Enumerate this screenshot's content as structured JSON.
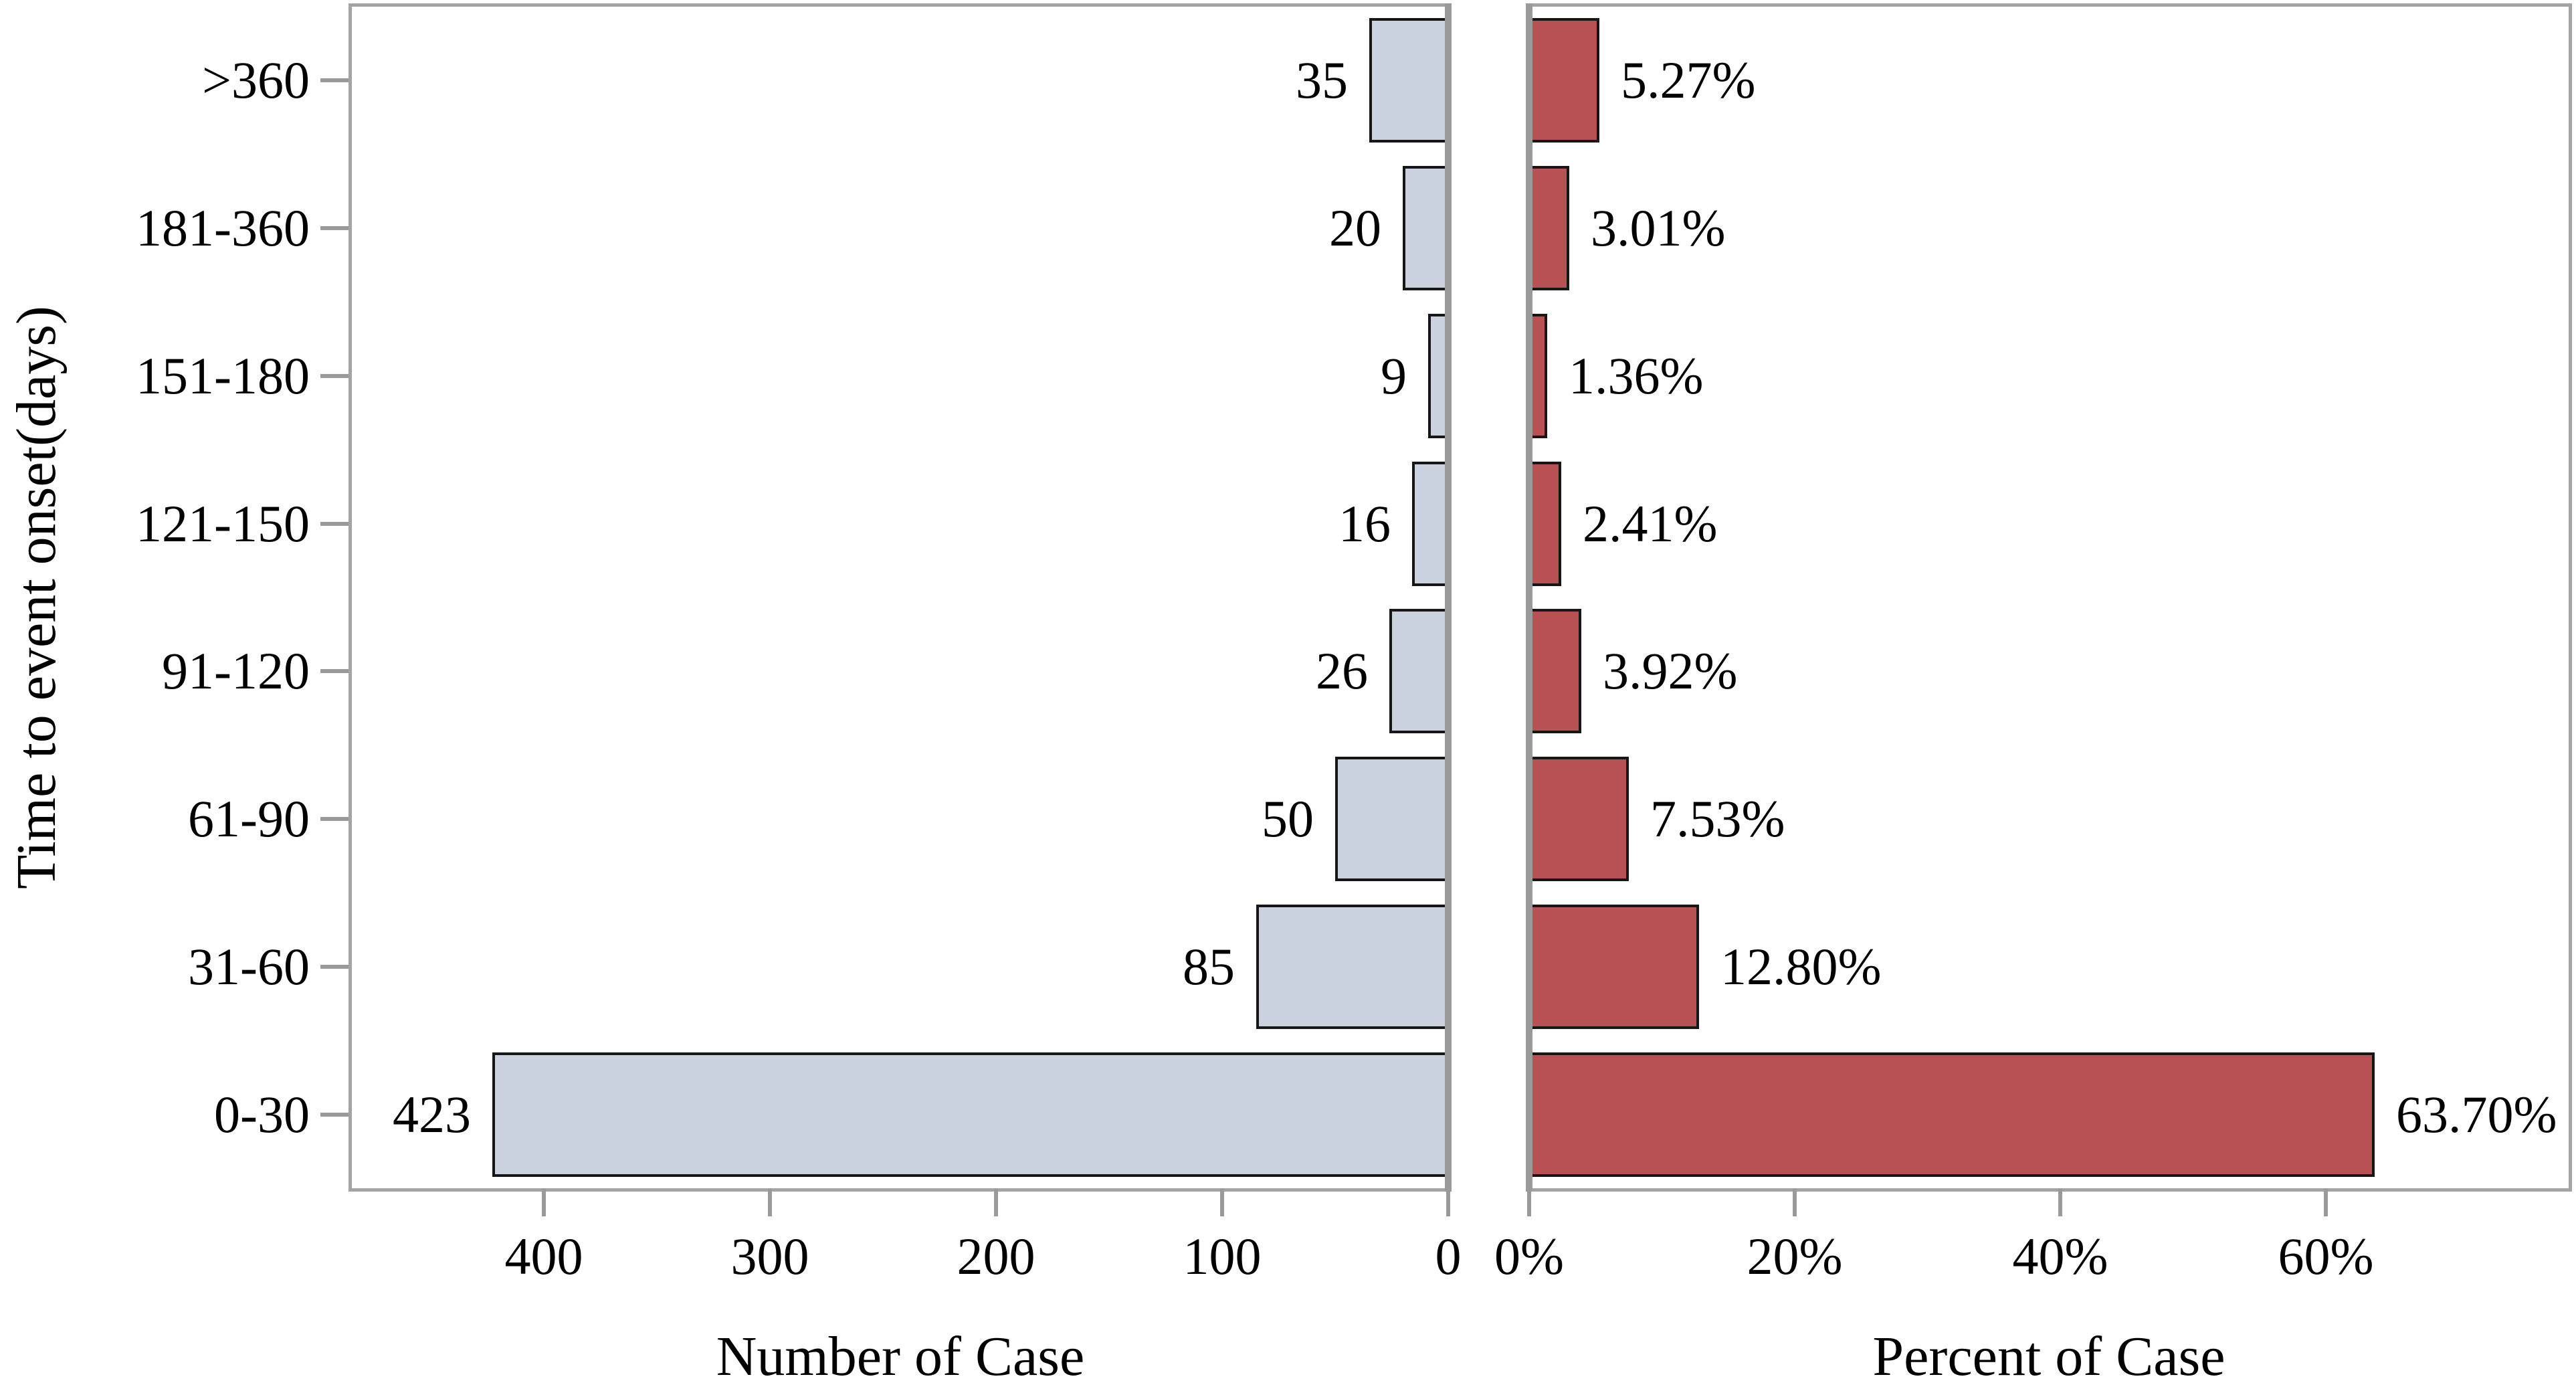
{
  "chart_data": {
    "type": "bar",
    "orientation": "horizontal-pyramid",
    "ylabel": "Time to event onset(days)",
    "categories": [
      ">360",
      "181-360",
      "151-180",
      "121-150",
      "91-120",
      "61-90",
      "31-60",
      "0-30"
    ],
    "series": [
      {
        "name": "Number of Case",
        "side": "left",
        "values": [
          35,
          20,
          9,
          16,
          26,
          50,
          85,
          423
        ],
        "value_labels": [
          "35",
          "20",
          "9",
          "16",
          "26",
          "50",
          "85",
          "423"
        ],
        "axis_ticks": [
          400,
          300,
          200,
          100,
          0
        ],
        "axis_tick_labels": [
          "400",
          "300",
          "200",
          "100",
          "0"
        ],
        "axis_range": [
          0,
          485
        ],
        "axis_direction": "reversed",
        "bar_color": "#c9d2de"
      },
      {
        "name": "Percent of Case",
        "side": "right",
        "values": [
          5.27,
          3.01,
          1.36,
          2.41,
          3.92,
          7.53,
          12.8,
          63.7
        ],
        "value_labels": [
          "5.27%",
          "3.01%",
          "1.36%",
          "2.41%",
          "3.92%",
          "7.53%",
          "12.80%",
          "63.70%"
        ],
        "axis_ticks": [
          0,
          20,
          40,
          60
        ],
        "axis_tick_labels": [
          "0%",
          "20%",
          "40%",
          "60%"
        ],
        "axis_range": [
          0,
          78.3
        ],
        "axis_direction": "normal",
        "bar_color": "#b85154"
      }
    ],
    "colors": {
      "left_bar": "#c9d2de",
      "right_bar": "#b85154",
      "bar_border": "#161616",
      "axis_line": "#9a9a9a",
      "text": "#000000",
      "background": "#ffffff"
    },
    "legend": false,
    "grid": false
  }
}
